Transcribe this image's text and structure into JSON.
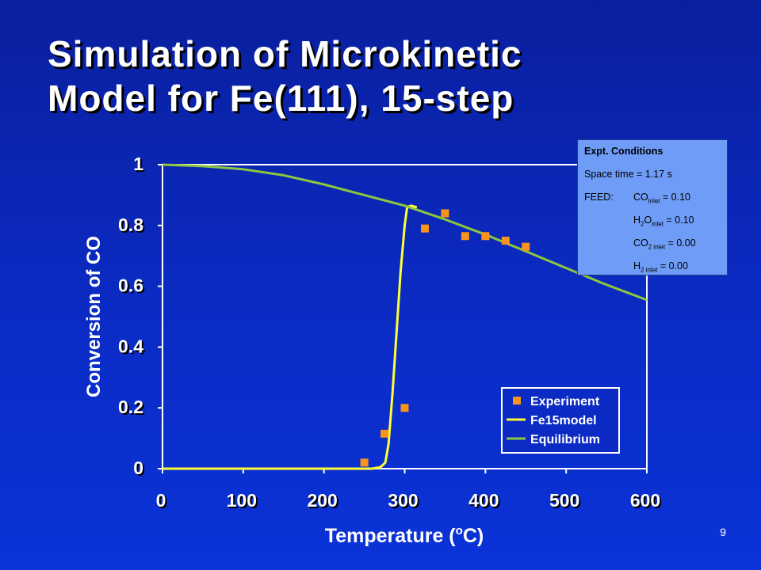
{
  "slide": {
    "title_line1": "Simulation of Microkinetic",
    "title_line2": "Model for Fe(111), 15-step",
    "page_number": "9"
  },
  "conditions": {
    "header": "Expt. Conditions",
    "space_time": "Space time = 1.17 s",
    "feed_label": "FEED:",
    "co": {
      "species": "CO",
      "sub": "inlet",
      "value": " = 0.10"
    },
    "h2o": {
      "species_a": "H",
      "sub_a": "2",
      "species_b": "O",
      "sub": "inlet",
      "value": " = 0.10"
    },
    "co2": {
      "species": "CO",
      "sub": "2 inlet",
      "value": " = 0.00"
    },
    "h2": {
      "species": "H",
      "sub": "2 inlet",
      "value": " = 0.00"
    }
  },
  "colors": {
    "background": "#0b2bc4",
    "plot_area": "#0b2bc4",
    "axis": "#ffffff",
    "experiment": "#f7941d",
    "model": "#ffff33",
    "equilibrium": "#8dc63f",
    "box_bg": "#6f9cf6"
  },
  "chart_data": {
    "type": "line",
    "title": "",
    "xlabel": "Temperature (",
    "xlabel_sup": "o",
    "xlabel_end": "C)",
    "ylabel": "Conversion of CO",
    "xlim": [
      0,
      600
    ],
    "ylim": [
      0,
      1
    ],
    "x_ticks": [
      "0",
      "100",
      "200",
      "300",
      "400",
      "500",
      "600"
    ],
    "y_ticks": [
      "0",
      "0.2",
      "0.4",
      "0.6",
      "0.8",
      "1"
    ],
    "grid": false,
    "legend_position": "bottom-right",
    "series": [
      {
        "name": "Experiment",
        "kind": "scatter",
        "color": "#f7941d",
        "points": [
          [
            250,
            0.02
          ],
          [
            275,
            0.115
          ],
          [
            300,
            0.2
          ],
          [
            325,
            0.79
          ],
          [
            350,
            0.84
          ],
          [
            375,
            0.765
          ],
          [
            400,
            0.765
          ],
          [
            425,
            0.75
          ],
          [
            450,
            0.73
          ]
        ]
      },
      {
        "name": "Fe15model",
        "kind": "line",
        "color": "#ffff33",
        "points": [
          [
            0,
            0.0
          ],
          [
            250,
            0.0
          ],
          [
            260,
            0.0
          ],
          [
            270,
            0.005
          ],
          [
            276,
            0.02
          ],
          [
            280,
            0.08
          ],
          [
            285,
            0.25
          ],
          [
            290,
            0.45
          ],
          [
            295,
            0.65
          ],
          [
            300,
            0.8
          ],
          [
            303,
            0.86
          ],
          [
            308,
            0.865
          ],
          [
            315,
            0.86
          ]
        ]
      },
      {
        "name": "Equilibrium",
        "kind": "line",
        "color": "#8dc63f",
        "points": [
          [
            0,
            1.0
          ],
          [
            50,
            0.995
          ],
          [
            100,
            0.985
          ],
          [
            150,
            0.965
          ],
          [
            200,
            0.935
          ],
          [
            250,
            0.9
          ],
          [
            300,
            0.865
          ],
          [
            350,
            0.82
          ],
          [
            400,
            0.77
          ],
          [
            450,
            0.715
          ],
          [
            500,
            0.66
          ],
          [
            550,
            0.605
          ],
          [
            600,
            0.555
          ]
        ]
      }
    ]
  }
}
